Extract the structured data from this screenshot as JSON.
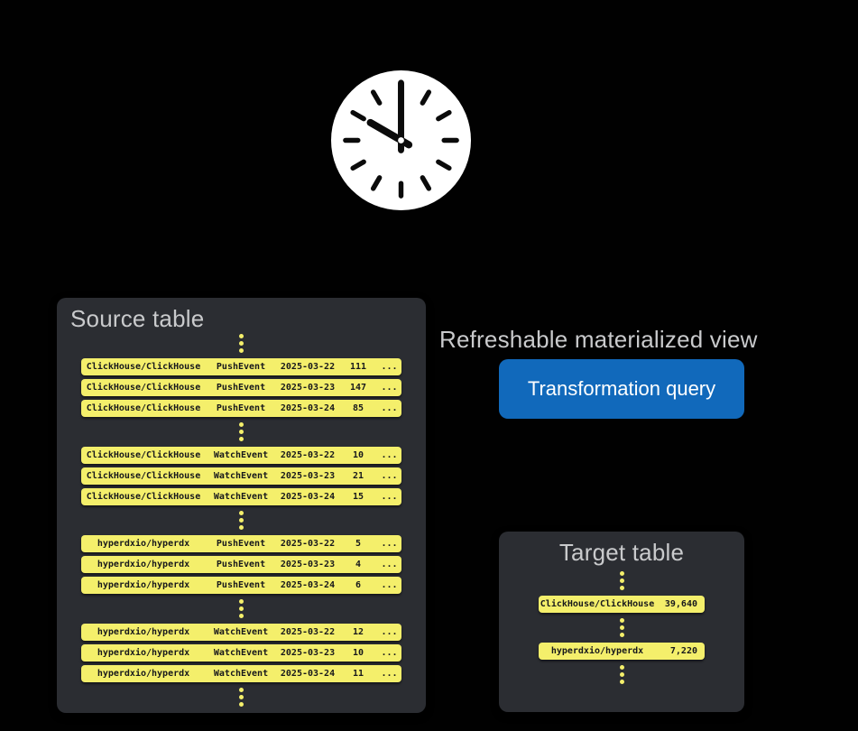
{
  "colors": {
    "background": "#010101",
    "panel_background": "#2b2d32",
    "row_yellow": "#f4ef6b",
    "button_blue": "#1169bb",
    "title_gray": "#c9cacc",
    "row_text": "#17181c"
  },
  "clock": {
    "time": "10:00"
  },
  "view": {
    "label": "Refreshable materialized view",
    "button_label": "Transformation query"
  },
  "source_table": {
    "title": "Source table",
    "groups": [
      {
        "rows": [
          [
            "ClickHouse/ClickHouse",
            "PushEvent",
            "2025-03-22",
            "111",
            "..."
          ],
          [
            "ClickHouse/ClickHouse",
            "PushEvent",
            "2025-03-23",
            "147",
            "..."
          ],
          [
            "ClickHouse/ClickHouse",
            "PushEvent",
            "2025-03-24",
            "85",
            "..."
          ]
        ]
      },
      {
        "rows": [
          [
            "ClickHouse/ClickHouse",
            "WatchEvent",
            "2025-03-22",
            "10",
            "..."
          ],
          [
            "ClickHouse/ClickHouse",
            "WatchEvent",
            "2025-03-23",
            "21",
            "..."
          ],
          [
            "ClickHouse/ClickHouse",
            "WatchEvent",
            "2025-03-24",
            "15",
            "..."
          ]
        ]
      },
      {
        "rows": [
          [
            "hyperdxio/hyperdx",
            "PushEvent",
            "2025-03-22",
            "5",
            "..."
          ],
          [
            "hyperdxio/hyperdx",
            "PushEvent",
            "2025-03-23",
            "4",
            "..."
          ],
          [
            "hyperdxio/hyperdx",
            "PushEvent",
            "2025-03-24",
            "6",
            "..."
          ]
        ]
      },
      {
        "rows": [
          [
            "hyperdxio/hyperdx",
            "WatchEvent",
            "2025-03-22",
            "12",
            "..."
          ],
          [
            "hyperdxio/hyperdx",
            "WatchEvent",
            "2025-03-23",
            "10",
            "..."
          ],
          [
            "hyperdxio/hyperdx",
            "WatchEvent",
            "2025-03-24",
            "11",
            "..."
          ]
        ]
      }
    ]
  },
  "target_table": {
    "title": "Target table",
    "rows": [
      [
        "ClickHouse/ClickHouse",
        "39,640"
      ],
      [
        "hyperdxio/hyperdx",
        "7,220"
      ]
    ]
  }
}
